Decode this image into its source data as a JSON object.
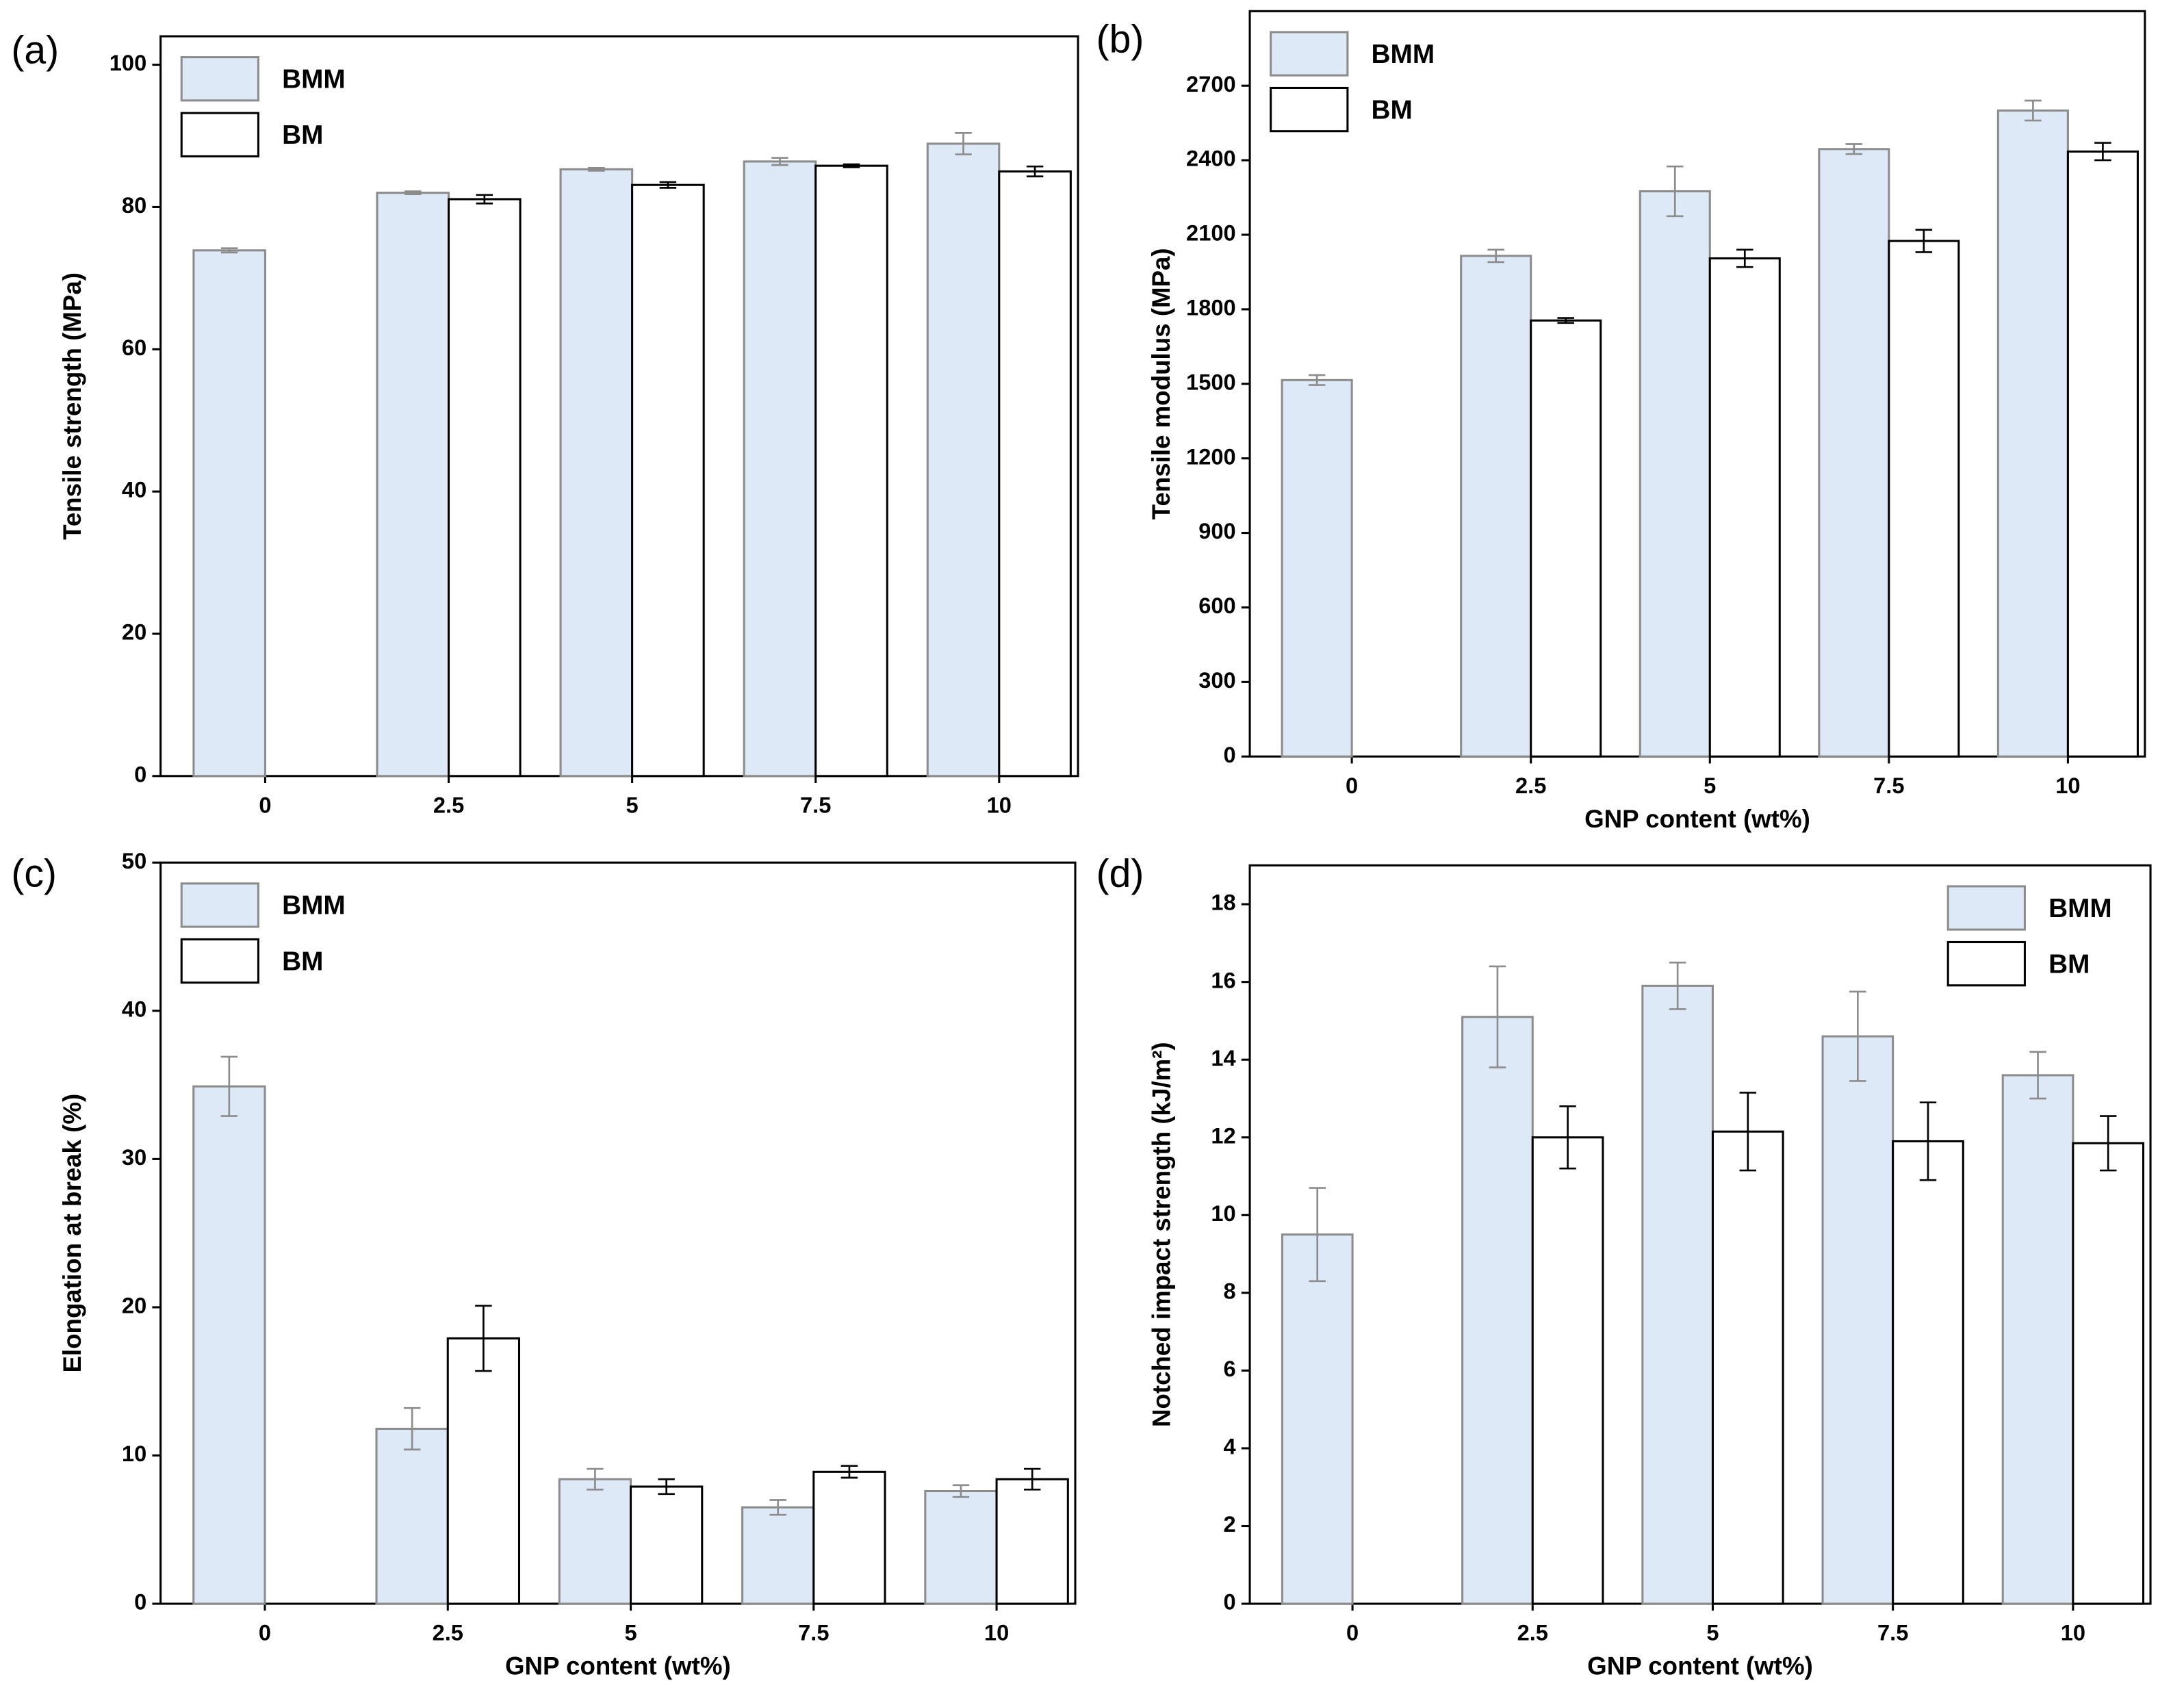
{
  "chart_data": [
    {
      "type": "bar",
      "panel": "(a)",
      "ylabel": "Tensile strength (MPa)",
      "categories": [
        "0",
        "2.5",
        "5",
        "7.5",
        "10"
      ],
      "series": [
        {
          "name": "BMM",
          "color": "#dde9f6",
          "edge": "#8c8c8c",
          "values": [
            73.9,
            82.0,
            85.3,
            86.4,
            88.9
          ],
          "errors": [
            0.3,
            0.2,
            0.2,
            0.5,
            1.5
          ]
        },
        {
          "name": "BM",
          "color": "#ffffff",
          "edge": "#000000",
          "values": [
            null,
            81.1,
            83.1,
            85.8,
            85.0
          ],
          "errors": [
            null,
            0.6,
            0.4,
            0.2,
            0.7
          ]
        }
      ],
      "ylim": [
        0,
        104
      ],
      "yticks": [
        0,
        20,
        40,
        60,
        80,
        100
      ],
      "legend": "upper left"
    },
    {
      "type": "bar",
      "panel": "(b)",
      "ylabel": "Tensile modulus (MPa)",
      "xlabel": "GNP content (wt%)",
      "categories": [
        "0",
        "2.5",
        "5",
        "7.5",
        "10"
      ],
      "series": [
        {
          "name": "BMM",
          "color": "#dde9f6",
          "edge": "#8c8c8c",
          "values": [
            1515,
            2015,
            2275,
            2445,
            2600
          ],
          "errors": [
            20,
            25,
            100,
            20,
            40
          ]
        },
        {
          "name": "BM",
          "color": "#ffffff",
          "edge": "#000000",
          "values": [
            null,
            1755,
            2005,
            2075,
            2435
          ],
          "errors": [
            null,
            10,
            35,
            45,
            35
          ]
        }
      ],
      "ylim": [
        0,
        3000
      ],
      "yticks": [
        0,
        300,
        600,
        900,
        1200,
        1500,
        1800,
        2100,
        2400,
        2700
      ],
      "legend": "upper left"
    },
    {
      "type": "bar",
      "panel": "(c)",
      "ylabel": "Elongation at break (%)",
      "xlabel": "GNP content (wt%)",
      "categories": [
        "0",
        "2.5",
        "5",
        "7.5",
        "10"
      ],
      "series": [
        {
          "name": "BMM",
          "color": "#dde9f6",
          "edge": "#8c8c8c",
          "values": [
            34.9,
            11.8,
            8.4,
            6.5,
            7.6
          ],
          "errors": [
            2.0,
            1.4,
            0.7,
            0.5,
            0.4
          ]
        },
        {
          "name": "BM",
          "color": "#ffffff",
          "edge": "#000000",
          "values": [
            null,
            17.9,
            7.9,
            8.9,
            8.4
          ],
          "errors": [
            null,
            2.2,
            0.5,
            0.4,
            0.7
          ]
        }
      ],
      "ylim": [
        0,
        50
      ],
      "yticks": [
        0,
        10,
        20,
        30,
        40,
        50
      ],
      "legend": "upper left"
    },
    {
      "type": "bar",
      "panel": "(d)",
      "ylabel": "Notched impact strength (kJ/m²)",
      "xlabel": "GNP content (wt%)",
      "categories": [
        "0",
        "2.5",
        "5",
        "7.5",
        "10"
      ],
      "series": [
        {
          "name": "BMM",
          "color": "#dde9f6",
          "edge": "#8c8c8c",
          "values": [
            9.5,
            15.1,
            15.9,
            14.6,
            13.6
          ],
          "errors": [
            1.2,
            1.3,
            0.6,
            1.15,
            0.6
          ]
        },
        {
          "name": "BM",
          "color": "#ffffff",
          "edge": "#000000",
          "values": [
            null,
            12.0,
            12.15,
            11.9,
            11.85
          ],
          "errors": [
            null,
            0.8,
            1.0,
            1.0,
            0.7
          ]
        }
      ],
      "ylim": [
        0,
        19
      ],
      "yticks": [
        0,
        2,
        4,
        6,
        8,
        10,
        12,
        14,
        16,
        18
      ],
      "legend": "upper right"
    }
  ]
}
